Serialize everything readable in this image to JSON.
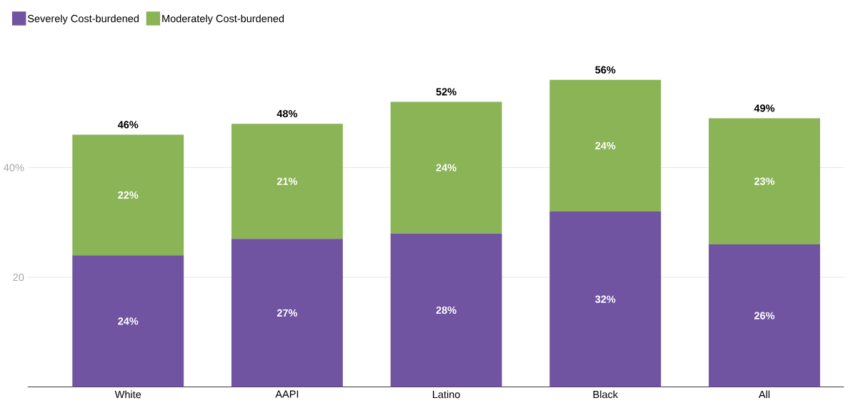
{
  "chart_data": {
    "type": "bar",
    "stacked": true,
    "categories": [
      "White",
      "AAPI",
      "Latino",
      "Black",
      "All"
    ],
    "series": [
      {
        "name": "Severely Cost-burdened",
        "color": "#7053a1",
        "values": [
          24,
          27,
          28,
          32,
          26
        ],
        "value_labels": [
          "24%",
          "27%",
          "28%",
          "32%",
          "26%"
        ]
      },
      {
        "name": "Moderately Cost-burdened",
        "color": "#8bb457",
        "values": [
          22,
          21,
          24,
          24,
          23
        ],
        "value_labels": [
          "22%",
          "21%",
          "24%",
          "24%",
          "23%"
        ]
      }
    ],
    "totals": [
      "46%",
      "48%",
      "52%",
      "56%",
      "49%"
    ],
    "ylim": [
      0,
      56
    ],
    "yticks": [
      {
        "value": 20,
        "label": "20"
      },
      {
        "value": 40,
        "label": "40%"
      }
    ],
    "grid": "y",
    "legend": "top left"
  }
}
